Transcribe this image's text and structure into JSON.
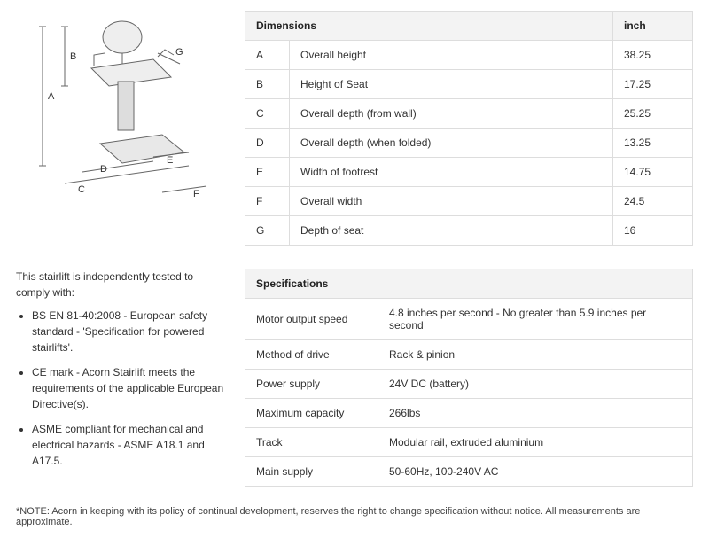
{
  "dimensions": {
    "header_label": "Dimensions",
    "header_unit": "inch",
    "rows": [
      {
        "key": "A",
        "label": "Overall height",
        "value": "38.25"
      },
      {
        "key": "B",
        "label": "Height of Seat",
        "value": "17.25"
      },
      {
        "key": "C",
        "label": "Overall depth (from wall)",
        "value": "25.25"
      },
      {
        "key": "D",
        "label": "Overall depth (when folded)",
        "value": "13.25"
      },
      {
        "key": "E",
        "label": "Width of footrest",
        "value": "14.75"
      },
      {
        "key": "F",
        "label": "Overall width",
        "value": "24.5"
      },
      {
        "key": "G",
        "label": "Depth of seat",
        "value": "16"
      }
    ]
  },
  "specifications": {
    "header": "Specifications",
    "rows": [
      {
        "key": "Motor output speed",
        "value": "4.8 inches per second - No greater than 5.9 inches per second"
      },
      {
        "key": "Method of drive",
        "value": "Rack & pinion"
      },
      {
        "key": "Power supply",
        "value": "24V DC (battery)"
      },
      {
        "key": "Maximum capacity",
        "value": "266lbs"
      },
      {
        "key": "Track",
        "value": "Modular rail, extruded aluminium"
      },
      {
        "key": "Main supply",
        "value": "50-60Hz, 100-240V AC"
      }
    ]
  },
  "compliance": {
    "intro": "This stairlift is independently tested to comply with:",
    "items": [
      "BS EN 81-40:2008 - European safety standard - 'Specification for powered stairlifts'.",
      "CE mark - Acorn Stairlift meets the requirements of the applicable European Directive(s).",
      "ASME compliant for mechanical and electrical hazards - ASME A18.1 and A17.5."
    ]
  },
  "note": "*NOTE: Acorn in keeping with its policy of continual development, reserves the right to change specification without notice. All measurements are approximate.",
  "diagram_labels": {
    "A": "A",
    "B": "B",
    "C": "C",
    "D": "D",
    "E": "E",
    "F": "F",
    "G": "G"
  }
}
